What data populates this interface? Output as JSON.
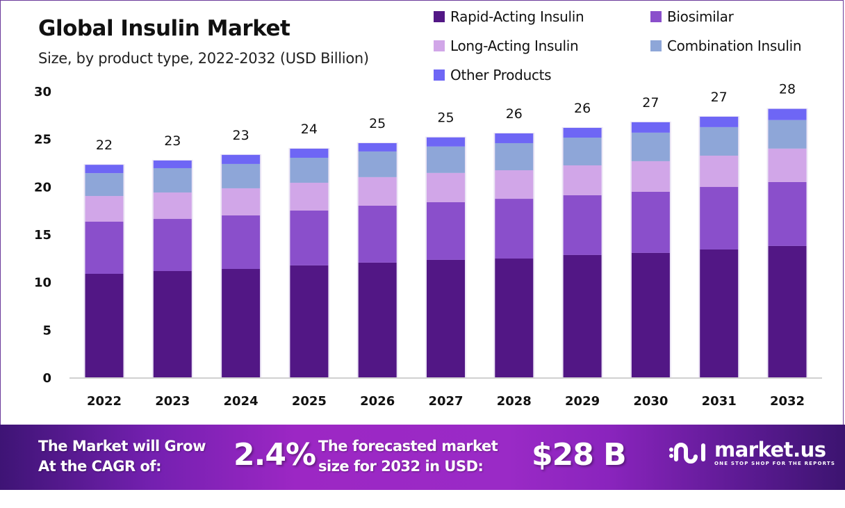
{
  "chart_data": {
    "type": "bar",
    "stacked": true,
    "title": "Global Insulin Market",
    "subtitle": "Size, by product type, 2022-2032 (USD Billion)",
    "xlabel": "",
    "ylabel": "",
    "ylim": [
      0,
      30
    ],
    "yticks": [
      0,
      5,
      10,
      15,
      20,
      25,
      30
    ],
    "grid": false,
    "legend_position": "top-right",
    "categories": [
      "2022",
      "2023",
      "2024",
      "2025",
      "2026",
      "2027",
      "2028",
      "2029",
      "2030",
      "2031",
      "2032"
    ],
    "series": [
      {
        "name": "Rapid-Acting Insulin",
        "color": "#521785",
        "values": [
          10.85,
          11.14,
          11.36,
          11.73,
          12.02,
          12.31,
          12.45,
          12.82,
          13.04,
          13.4,
          13.77
        ]
      },
      {
        "name": "Biosimilar",
        "color": "#8a4fcb",
        "values": [
          5.46,
          5.46,
          5.61,
          5.75,
          5.97,
          6.05,
          6.26,
          6.26,
          6.41,
          6.55,
          6.7
        ]
      },
      {
        "name": "Long-Acting Insulin",
        "color": "#d1a6e8",
        "values": [
          2.69,
          2.77,
          2.84,
          2.91,
          2.99,
          3.06,
          2.99,
          3.13,
          3.2,
          3.28,
          3.5
        ]
      },
      {
        "name": "Combination Insulin",
        "color": "#8ea6d8",
        "values": [
          2.4,
          2.55,
          2.55,
          2.62,
          2.69,
          2.77,
          2.84,
          2.91,
          2.99,
          2.99,
          2.99
        ]
      },
      {
        "name": "Other Products",
        "color": "#6e66f5",
        "values": [
          0.87,
          0.8,
          0.95,
          0.95,
          0.87,
          0.95,
          1.02,
          1.02,
          1.09,
          1.09,
          1.17
        ]
      }
    ],
    "total_labels": [
      "22",
      "23",
      "23",
      "24",
      "25",
      "25",
      "26",
      "26",
      "27",
      "27",
      "28"
    ]
  },
  "banner": {
    "cagr_label_line1": "The Market will Grow",
    "cagr_label_line2": "At the CAGR of:",
    "cagr_value": "2.4%",
    "forecast_label_line1": "The forecasted market",
    "forecast_label_line2": "size for 2032 in USD:",
    "forecast_value": "$28 B",
    "brand_name": "market.us",
    "brand_tagline": "ONE STOP SHOP FOR THE REPORTS"
  },
  "colors": {
    "banner_dark": "#3e1475",
    "banner_mid": "#9c27c4",
    "frame_border": "#6b3a9a"
  }
}
